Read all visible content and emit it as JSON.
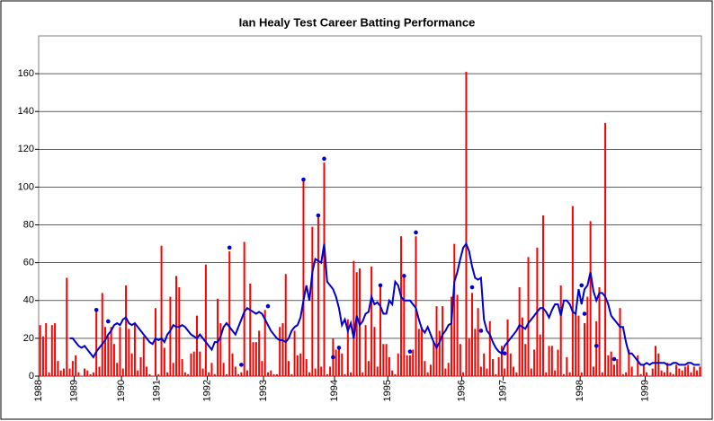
{
  "chart_data": {
    "type": "bar",
    "title": "Ian Healy Test Career Batting Performance",
    "categories": [
      "1988",
      null,
      null,
      null,
      null,
      null,
      null,
      null,
      null,
      null,
      null,
      null,
      "1989",
      null,
      null,
      null,
      null,
      null,
      null,
      null,
      null,
      null,
      null,
      null,
      null,
      null,
      null,
      null,
      "1990",
      null,
      null,
      null,
      null,
      null,
      null,
      null,
      null,
      null,
      null,
      null,
      "1991",
      null,
      null,
      null,
      null,
      null,
      null,
      null,
      null,
      null,
      null,
      null,
      null,
      null,
      null,
      null,
      null,
      "1992",
      null,
      null,
      null,
      null,
      null,
      null,
      null,
      null,
      null,
      null,
      null,
      null,
      null,
      null,
      null,
      null,
      null,
      null,
      "1993",
      null,
      null,
      null,
      null,
      null,
      null,
      null,
      null,
      null,
      null,
      null,
      null,
      null,
      null,
      null,
      null,
      null,
      null,
      null,
      null,
      null,
      null,
      null,
      "1994",
      null,
      null,
      null,
      null,
      null,
      null,
      null,
      null,
      null,
      null,
      null,
      null,
      null,
      null,
      null,
      null,
      null,
      "1995",
      null,
      null,
      null,
      null,
      null,
      null,
      null,
      null,
      null,
      null,
      null,
      null,
      null,
      null,
      null,
      null,
      null,
      null,
      null,
      null,
      null,
      null,
      null,
      null,
      "1996",
      null,
      null,
      null,
      null,
      null,
      null,
      null,
      null,
      null,
      null,
      null,
      null,
      null,
      "1997",
      null,
      null,
      null,
      null,
      null,
      null,
      null,
      null,
      null,
      null,
      null,
      null,
      null,
      null,
      null,
      null,
      null,
      null,
      null,
      null,
      null,
      null,
      null,
      null,
      null,
      "1998",
      null,
      null,
      null,
      null,
      null,
      null,
      null,
      null,
      null,
      null,
      null,
      null,
      null,
      null,
      null,
      null,
      null,
      null,
      null,
      null,
      null,
      "1999",
      null,
      null,
      null,
      null,
      null,
      null,
      null,
      null,
      null,
      null,
      null,
      null,
      null,
      null,
      null,
      null,
      null,
      null
    ],
    "series": [
      {
        "type": "bar",
        "color": "#ff0000",
        "values": [
          27,
          21,
          28,
          2,
          27,
          28,
          8,
          3,
          4,
          52,
          4,
          8,
          11,
          2,
          0,
          4,
          3,
          1,
          2,
          34,
          5,
          44,
          26,
          21,
          26,
          17,
          7,
          26,
          4,
          48,
          25,
          12,
          28,
          3,
          10,
          21,
          5,
          1,
          0,
          36,
          1,
          69,
          15,
          2,
          42,
          7,
          53,
          47,
          9,
          2,
          1,
          12,
          13,
          32,
          13,
          4,
          59,
          2,
          7,
          1,
          41,
          28,
          7,
          1,
          66,
          12,
          5,
          1,
          2,
          71,
          3,
          49,
          18,
          18,
          24,
          8,
          35,
          2,
          3,
          1,
          1,
          26,
          28,
          54,
          8,
          1,
          24,
          11,
          12,
          103,
          9,
          2,
          79,
          4,
          84,
          5,
          113,
          1,
          5,
          20,
          14,
          16,
          12,
          1,
          30,
          2,
          61,
          55,
          57,
          2,
          27,
          8,
          58,
          26,
          5,
          48,
          17,
          17,
          10,
          3,
          1,
          12,
          74,
          52,
          11,
          11,
          14,
          74,
          25,
          26,
          8,
          2,
          6,
          18,
          37,
          24,
          37,
          4,
          7,
          42,
          70,
          43,
          17,
          2,
          161,
          20,
          44,
          25,
          36,
          5,
          12,
          4,
          29,
          9,
          1,
          10,
          16,
          4,
          30,
          12,
          5,
          2,
          47,
          31,
          17,
          63,
          4,
          14,
          68,
          22,
          85,
          2,
          16,
          16,
          3,
          14,
          48,
          1,
          10,
          2,
          90,
          33,
          32,
          2,
          28,
          42,
          82,
          5,
          29,
          47,
          2,
          134,
          11,
          13,
          6,
          9,
          36,
          1,
          2,
          14,
          5,
          0,
          11,
          1,
          6,
          2,
          0,
          4,
          16,
          12,
          3,
          2,
          7,
          2,
          1,
          6,
          4,
          3,
          5,
          6,
          2,
          5,
          3,
          5
        ]
      },
      {
        "type": "line",
        "color": "#0000cc",
        "values": [
          null,
          null,
          null,
          null,
          null,
          null,
          null,
          null,
          null,
          null,
          20,
          20,
          18,
          16,
          15,
          16,
          14,
          12,
          10,
          13,
          15,
          17,
          19,
          22,
          24,
          27,
          28,
          27,
          30,
          31,
          28,
          27,
          28,
          26,
          24,
          22,
          20,
          18,
          17,
          20,
          19,
          20,
          18,
          22,
          24,
          27,
          26,
          26,
          27,
          26,
          24,
          22,
          21,
          20,
          22,
          20,
          18,
          16,
          14,
          18,
          18,
          21,
          26,
          28,
          26,
          24,
          22,
          26,
          30,
          34,
          36,
          35,
          34,
          33,
          34,
          33,
          30,
          27,
          24,
          22,
          20,
          19,
          19,
          18,
          20,
          24,
          26,
          27,
          31,
          40,
          48,
          40,
          55,
          62,
          61,
          60,
          70,
          50,
          48,
          46,
          42,
          36,
          27,
          30,
          24,
          28,
          20,
          32,
          27,
          29,
          33,
          34,
          42,
          38,
          39,
          37,
          33,
          33,
          40,
          38,
          50,
          48,
          42,
          40,
          40,
          40,
          38,
          36,
          30,
          25,
          23,
          26,
          22,
          18,
          15,
          18,
          22,
          24,
          27,
          28,
          50,
          55,
          62,
          68,
          70,
          66,
          58,
          52,
          51,
          52,
          30,
          24,
          22,
          18,
          15,
          13,
          12,
          16,
          18,
          20,
          22,
          24,
          27,
          26,
          25,
          28,
          30,
          32,
          34,
          36,
          36,
          34,
          31,
          35,
          38,
          38,
          32,
          40,
          40,
          38,
          34,
          33,
          46,
          38,
          46,
          48,
          55,
          45,
          40,
          44,
          44,
          42,
          38,
          32,
          30,
          28,
          26,
          26,
          18,
          12,
          12,
          10,
          8,
          6,
          6,
          7,
          6,
          7,
          7,
          7,
          7,
          7,
          6,
          6,
          7,
          7,
          6,
          6,
          6,
          7,
          7,
          6,
          6,
          6
        ]
      }
    ],
    "not_outs": {
      "color": "#0000cc",
      "x": [
        19,
        23,
        64,
        68,
        77,
        89,
        94,
        96,
        99,
        101,
        115,
        123,
        125,
        127,
        146,
        149,
        157,
        183,
        184,
        188,
        194
      ],
      "values": [
        35,
        29,
        68,
        6,
        37,
        104,
        85,
        115,
        10,
        15,
        48,
        53,
        13,
        76,
        47,
        24,
        12,
        48,
        33,
        16,
        9
      ]
    },
    "ylim": [
      0,
      180
    ],
    "yticks": [
      0,
      20,
      40,
      60,
      80,
      100,
      120,
      140,
      160
    ],
    "grid": true
  }
}
